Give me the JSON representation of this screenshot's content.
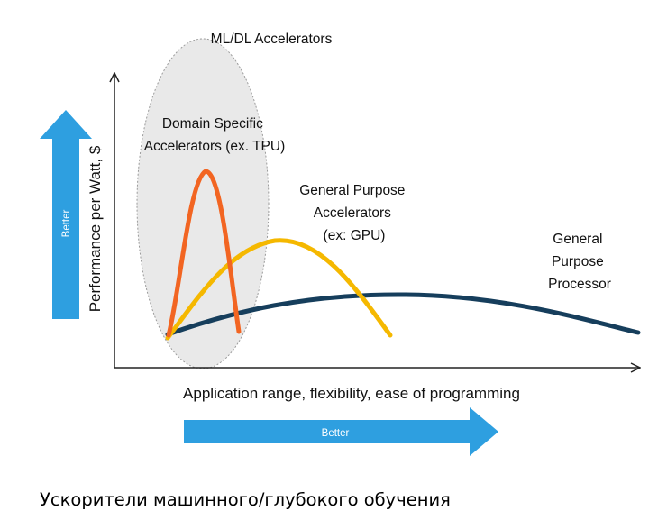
{
  "diagram": {
    "ml_region_label": "ML/DL Accelerators",
    "y_axis_label": "Performance per Watt, $",
    "x_axis_label": "Application range, flexibility, ease of programming",
    "better_vertical": "Better",
    "better_horizontal": "Better",
    "curves": [
      {
        "id": "domain-specific",
        "label_lines": [
          "Domain Specific",
          "Accelerators (ex. TPU)"
        ],
        "color": "#f26522"
      },
      {
        "id": "general-accelerators",
        "label_lines": [
          "General Purpose",
          "Accelerators",
          "(ex: GPU)"
        ],
        "color": "#f5b800"
      },
      {
        "id": "general-processor",
        "label_lines": [
          "General",
          "Purpose",
          "Processor"
        ],
        "color": "#163e5c"
      }
    ],
    "colors": {
      "arrow_blue": "#2e9fe0",
      "ellipse_fill": "#e6e6e6",
      "ellipse_stroke": "#8a8a8a"
    }
  },
  "caption": "Ускорители машинного/глубокого обучения"
}
